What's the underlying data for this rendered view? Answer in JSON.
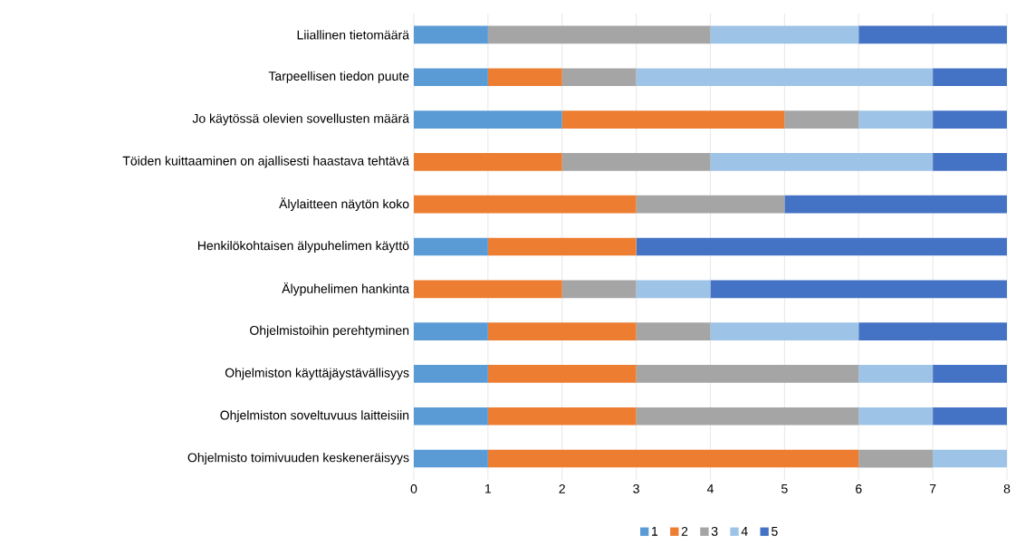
{
  "chart_data": {
    "type": "bar",
    "orientation": "horizontal",
    "stacked": true,
    "categories": [
      "Liiallinen tietomäärä",
      "Tarpeellisen tiedon puute",
      "Jo käytössä olevien sovellusten määrä",
      "Töiden kuittaaminen on ajallisesti haastava tehtävä",
      "Älylaitteen näytön koko",
      "Henkilökohtaisen älypuhelimen käyttö",
      "Älypuhelimen hankinta",
      "Ohjelmistoihin perehtyminen",
      "Ohjelmiston käyttäjäystävällisyys",
      "Ohjelmiston soveltuvuus laitteisiin",
      "Ohjelmisto toimivuuden keskeneräisyys"
    ],
    "series": [
      {
        "name": "1",
        "color": "#5b9bd5",
        "values": [
          1,
          1,
          2,
          0,
          0,
          1,
          0,
          1,
          1,
          1,
          1
        ]
      },
      {
        "name": "2",
        "color": "#ed7d31",
        "values": [
          0,
          1,
          3,
          2,
          3,
          2,
          2,
          2,
          2,
          2,
          5
        ]
      },
      {
        "name": "3",
        "color": "#a5a5a5",
        "values": [
          3,
          1,
          1,
          2,
          2,
          0,
          1,
          1,
          3,
          3,
          1
        ]
      },
      {
        "name": "4",
        "color": "#9dc3e6",
        "values": [
          2,
          4,
          1,
          3,
          0,
          0,
          1,
          2,
          1,
          1,
          1
        ]
      },
      {
        "name": "5",
        "color": "#4472c4",
        "values": [
          2,
          1,
          1,
          1,
          3,
          5,
          4,
          2,
          1,
          1,
          0
        ]
      }
    ],
    "xlim": [
      0,
      8
    ],
    "xticks": [
      0,
      1,
      2,
      3,
      4,
      5,
      6,
      7,
      8
    ],
    "grid": "x",
    "legend": "bottom"
  }
}
